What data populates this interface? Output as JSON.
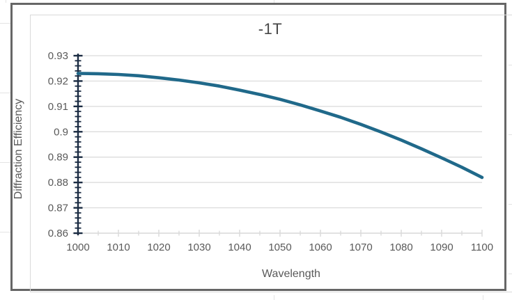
{
  "chart": {
    "frame": "excel-chart-object",
    "background": "#ffffff",
    "border_color": "#666666",
    "inner_border_color": "#d9d9d9"
  },
  "chart_data": {
    "type": "line",
    "title": "-1T",
    "xlabel": "Wavelength",
    "ylabel": "Diffraction Efficiency",
    "xlim": [
      1000,
      1100
    ],
    "ylim": [
      0.86,
      0.93
    ],
    "x_tick_labels": [
      "1000",
      "1010",
      "1020",
      "1030",
      "1040",
      "1050",
      "1060",
      "1070",
      "1080",
      "1090",
      "1100"
    ],
    "x_minor_tick_step": 5,
    "y_tick_labels": [
      "0.93",
      "0.92",
      "0.91",
      "0.9",
      "0.89",
      "0.88",
      "0.87",
      "0.86"
    ],
    "y_major_step": 0.01,
    "y_minor_step": 0.002,
    "grid": "horizontal-major",
    "legend": "none",
    "series": [
      {
        "name": "-1T",
        "color": "#20698a",
        "x": [
          1000,
          1005,
          1010,
          1015,
          1020,
          1025,
          1030,
          1035,
          1040,
          1045,
          1050,
          1055,
          1060,
          1065,
          1070,
          1075,
          1080,
          1085,
          1090,
          1095,
          1100
        ],
        "y": [
          0.923,
          0.9229,
          0.9226,
          0.9221,
          0.9213,
          0.9204,
          0.9193,
          0.918,
          0.9164,
          0.9147,
          0.9128,
          0.9106,
          0.9082,
          0.9057,
          0.9029,
          0.8999,
          0.8967,
          0.8933,
          0.8897,
          0.886,
          0.882
        ]
      }
    ],
    "colors": {
      "series": "#20698a",
      "y_axis": "#1a2b42",
      "x_axis": "#d9d9d9",
      "gridline": "#d9d9d9",
      "tick_label": "#595959",
      "title": "#474747"
    }
  }
}
